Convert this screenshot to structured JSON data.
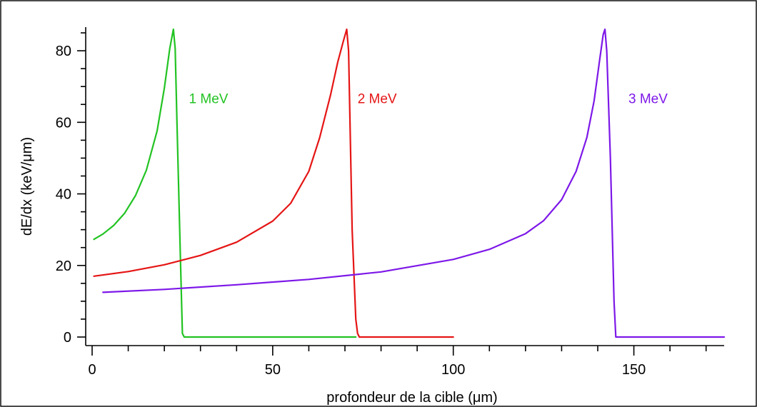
{
  "chart_data": {
    "type": "line",
    "xlabel": "profondeur de la cible (μm)",
    "ylabel": "dE/dx (keV/μm)",
    "xlim": [
      0,
      175
    ],
    "ylim": [
      0,
      87
    ],
    "xticks_major": [
      0,
      50,
      100,
      150
    ],
    "xtick_labels": [
      "0",
      "50",
      "100",
      "150"
    ],
    "yticks_major": [
      0,
      20,
      40,
      60,
      80
    ],
    "ytick_labels": [
      "0",
      "20",
      "40",
      "60",
      "80"
    ],
    "grid": false,
    "legend": "none",
    "series": [
      {
        "name": "1 MeV",
        "color": "#22c322",
        "x": [
          0.5,
          3,
          6,
          9,
          12,
          15,
          18,
          20,
          21.5,
          22.5,
          23,
          23.5,
          24.5,
          25,
          25.5,
          30,
          40,
          50,
          60,
          73
        ],
        "y": [
          27.3,
          28.8,
          31.2,
          34.6,
          39.5,
          46.6,
          57.6,
          69.5,
          80.6,
          86.0,
          80.6,
          60.0,
          20.0,
          1.0,
          0.0,
          0.0,
          0.0,
          0.0,
          0.0,
          0.0
        ]
      },
      {
        "name": "2 MeV",
        "color": "#e51515",
        "x": [
          0.5,
          10,
          20,
          30,
          40,
          50,
          55,
          60,
          63,
          66,
          68,
          69.5,
          70.5,
          71,
          71.5,
          72,
          73,
          73.5,
          74,
          80,
          90,
          100
        ],
        "y": [
          17.0,
          18.3,
          20.2,
          22.8,
          26.5,
          32.4,
          37.4,
          46.3,
          55.7,
          67.6,
          76.8,
          82.5,
          86.0,
          80.0,
          55.0,
          30.0,
          5.0,
          1.0,
          0.0,
          0.0,
          0.0,
          0.0
        ]
      },
      {
        "name": "3 MeV",
        "color": "#7d18e8",
        "x": [
          3,
          20,
          40,
          60,
          80,
          100,
          110,
          120,
          125,
          130,
          134,
          137,
          139,
          140.5,
          141.5,
          142,
          142.5,
          143.5,
          144.5,
          145,
          150,
          160,
          175
        ],
        "y": [
          12.5,
          13.3,
          14.6,
          16.1,
          18.2,
          21.7,
          24.5,
          28.9,
          32.5,
          38.4,
          46.3,
          55.8,
          66.0,
          77.2,
          84.5,
          86.0,
          80.0,
          50.0,
          10.0,
          0.0,
          0.0,
          0.0,
          0.0
        ]
      }
    ],
    "annotations": [
      {
        "text": "1 MeV",
        "x": 26.8,
        "y": 65.3,
        "color": "#22c322"
      },
      {
        "text": "2 MeV",
        "x": 73.5,
        "y": 65.3,
        "color": "#e51515"
      },
      {
        "text": "3 MeV",
        "x": 148.5,
        "y": 65.3,
        "color": "#7d18e8"
      }
    ]
  }
}
